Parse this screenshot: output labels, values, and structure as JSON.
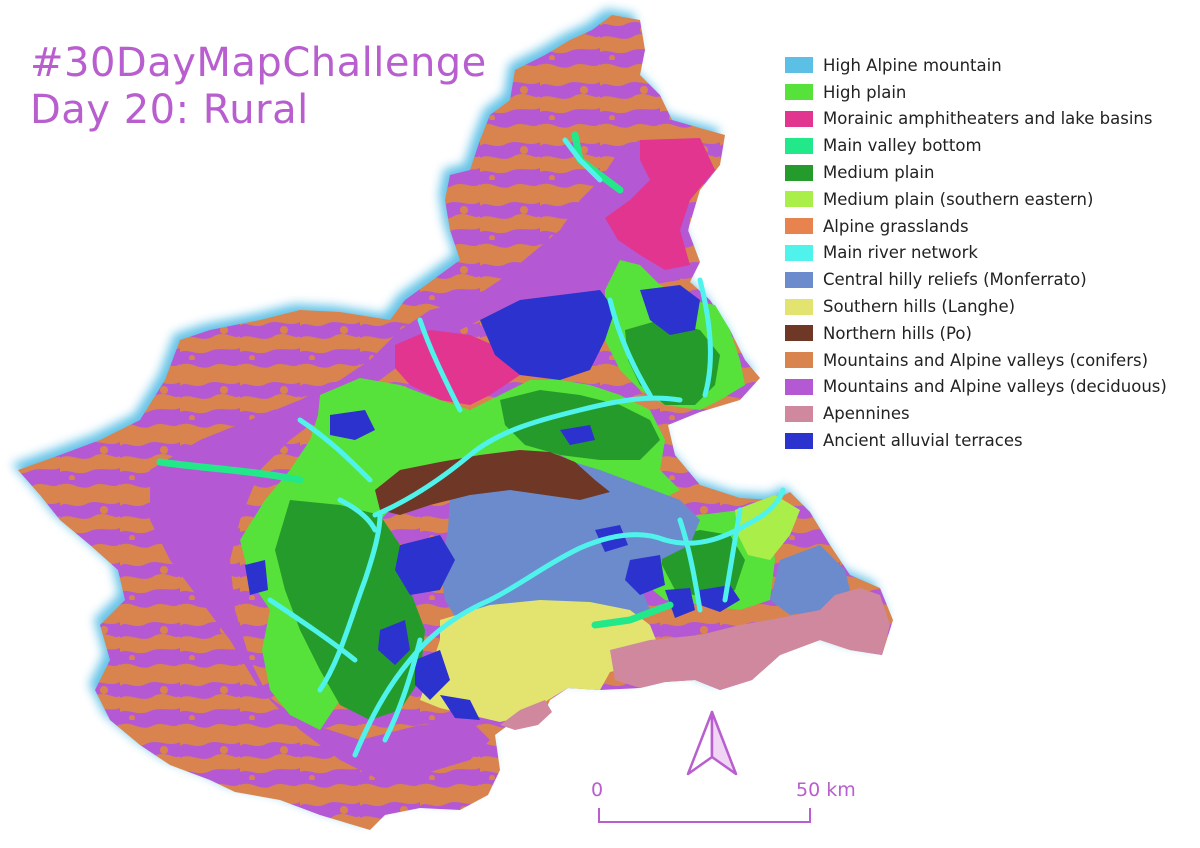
{
  "title": {
    "line1": "#30DayMapChallenge",
    "line2": "Day 20: Rural"
  },
  "legend": [
    {
      "label": "High Alpine mountain",
      "color": "#5bbfe6"
    },
    {
      "label": "High plain",
      "color": "#56e23a"
    },
    {
      "label": "Morainic amphitheaters and lake basins",
      "color": "#e1358f"
    },
    {
      "label": "Main valley bottom",
      "color": "#22e88a"
    },
    {
      "label": "Medium plain",
      "color": "#259b2b"
    },
    {
      "label": "Medium plain (southern eastern)",
      "color": "#aaee4a"
    },
    {
      "label": "Alpine grasslands",
      "color": "#e8834f"
    },
    {
      "label": "Main river network",
      "color": "#4ff3ec"
    },
    {
      "label": "Central hilly reliefs (Monferrato)",
      "color": "#6b8bcd"
    },
    {
      "label": "Southern hills (Langhe)",
      "color": "#e3e470"
    },
    {
      "label": "Northern hills (Po)",
      "color": "#6e3726"
    },
    {
      "label": "Mountains and Alpine valleys (conifers)",
      "color": "#d9844f"
    },
    {
      "label": "Mountains and Alpine valleys (deciduous)",
      "color": "#b558d3"
    },
    {
      "label": "Apennines",
      "color": "#cf889e"
    },
    {
      "label": "Ancient alluvial terraces",
      "color": "#2c32cd"
    }
  ],
  "scale_bar": {
    "start_label": "0",
    "end_label": "50 km",
    "color": "#b85ecf"
  },
  "north_arrow": {
    "icon": "north-arrow-icon",
    "color": "#b85ecf"
  }
}
